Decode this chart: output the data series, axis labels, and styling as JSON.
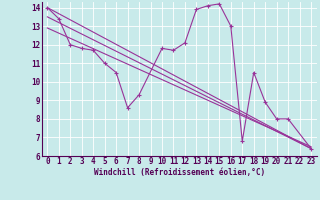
{
  "background_color": "#c8eaea",
  "grid_color": "#ffffff",
  "line_color": "#993399",
  "marker": "+",
  "markersize": 3,
  "linewidth": 0.8,
  "xlabel": "Windchill (Refroidissement éolien,°C)",
  "xlabel_fontsize": 5.5,
  "tick_fontsize": 5.5,
  "xlim": [
    -0.5,
    23.5
  ],
  "ylim": [
    6,
    14.3
  ],
  "yticks": [
    6,
    7,
    8,
    9,
    10,
    11,
    12,
    13,
    14
  ],
  "xticks": [
    0,
    1,
    2,
    3,
    4,
    5,
    6,
    7,
    8,
    9,
    10,
    11,
    12,
    13,
    14,
    15,
    16,
    17,
    18,
    19,
    20,
    21,
    22,
    23
  ],
  "series": [
    {
      "x": [
        0,
        1,
        2,
        3,
        4,
        5,
        6,
        7,
        8,
        10,
        11,
        12,
        13,
        14,
        15,
        16,
        17,
        18,
        19,
        20,
        21,
        23
      ],
      "y": [
        14.0,
        13.4,
        12.0,
        11.8,
        11.7,
        11.0,
        10.5,
        8.6,
        9.3,
        11.8,
        11.7,
        12.1,
        13.9,
        14.1,
        14.2,
        13.0,
        6.8,
        10.5,
        8.9,
        8.0,
        8.0,
        6.4
      ]
    },
    {
      "x": [
        0,
        23
      ],
      "y": [
        14.0,
        6.4
      ]
    },
    {
      "x": [
        0,
        23
      ],
      "y": [
        13.5,
        6.4
      ]
    },
    {
      "x": [
        0,
        23
      ],
      "y": [
        12.9,
        6.5
      ]
    }
  ],
  "bottom_bar_color": "#660066",
  "bottom_bar_height": 0.12
}
